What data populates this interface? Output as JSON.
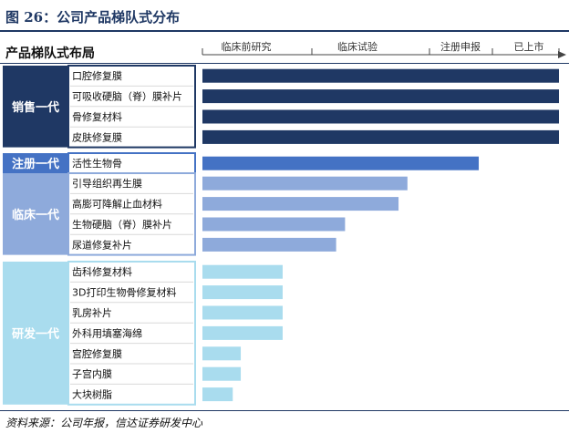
{
  "title": "图 26：公司产品梯队式分布",
  "header_label": "产品梯队式布局",
  "source": "资料来源：公司年报，信达证券研发中心",
  "chart_data": {
    "type": "bar",
    "orientation": "horizontal",
    "title": "图 26：公司产品梯队式分布",
    "xlabel": "",
    "ylabel": "",
    "stages": [
      "临床前研究",
      "临床试验",
      "注册申报",
      "已上市"
    ],
    "xlim": [
      0,
      4
    ],
    "grid": false,
    "legend": "none",
    "groups": [
      {
        "name": "销售一代",
        "fill": "#1f3864",
        "bar_color": "#1f3864",
        "items": [
          {
            "label": "口腔修复膜",
            "value": 4.0
          },
          {
            "label": "可吸收硬脑（脊）膜补片",
            "value": 4.0
          },
          {
            "label": "骨修复材料",
            "value": 4.0
          },
          {
            "label": "皮肤修复膜",
            "value": 4.0
          }
        ]
      },
      {
        "name": "注册一代",
        "fill": "#4472c4",
        "bar_color": "#4472c4",
        "items": [
          {
            "label": "活性生物骨",
            "value": 3.1
          }
        ]
      },
      {
        "name": "临床一代",
        "fill": "#8eaadb",
        "bar_color": "#8eaadb",
        "items": [
          {
            "label": "引导组织再生膜",
            "value": 2.3
          },
          {
            "label": "高膨可降解止血材料",
            "value": 2.2
          },
          {
            "label": "生物硬脑（脊）膜补片",
            "value": 1.6
          },
          {
            "label": "尿道修复补片",
            "value": 1.5
          }
        ]
      },
      {
        "name": "研发一代",
        "fill": "#a9dcee",
        "bar_color": "#a9dcee",
        "items": [
          {
            "label": "齿科修复材料",
            "value": 0.9
          },
          {
            "label": "3D打印生物骨修复材料",
            "value": 0.9
          },
          {
            "label": "乳房补片",
            "value": 0.9
          },
          {
            "label": "外科用填塞海绵",
            "value": 0.9
          },
          {
            "label": "宫腔修复膜",
            "value": 0.43
          },
          {
            "label": "子宫内膜",
            "value": 0.43
          },
          {
            "label": "大块树脂",
            "value": 0.34
          }
        ]
      }
    ]
  }
}
